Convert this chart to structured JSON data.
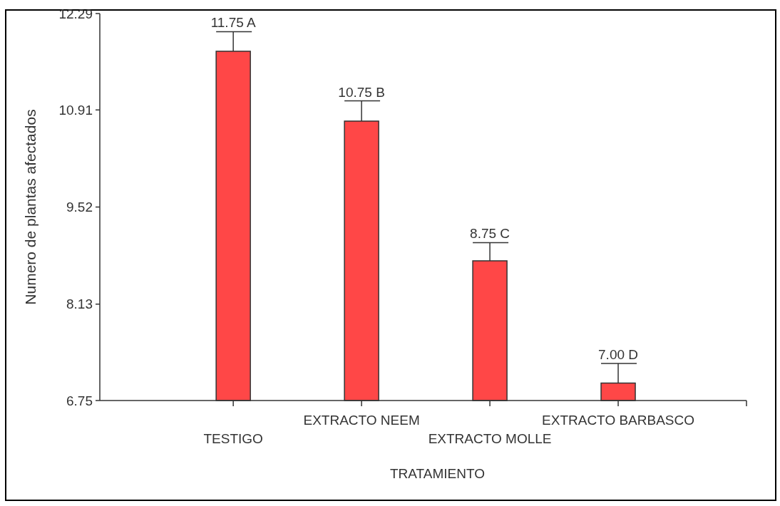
{
  "chart_data": {
    "type": "bar",
    "xlabel": "TRATAMIENTO",
    "ylabel": "Numero de plantas afectados",
    "categories": [
      "TESTIGO",
      "EXTRACTO NEEM",
      "EXTRACTO MOLLE",
      "EXTRACTO BARBASCO"
    ],
    "values": [
      11.75,
      10.75,
      8.75,
      7.0
    ],
    "errors": [
      [
        11.75,
        12.03
      ],
      [
        10.75,
        11.04
      ],
      [
        8.75,
        9.01
      ],
      [
        7.0,
        7.28
      ]
    ],
    "value_labels": [
      "11.75 A",
      "10.75 B",
      "8.75 C",
      "7.00 D"
    ],
    "color": "#ff4747",
    "ylim": [
      6.75,
      12.29
    ],
    "yticks": [
      6.75,
      8.13,
      9.52,
      10.91,
      12.29
    ],
    "grid": false
  }
}
